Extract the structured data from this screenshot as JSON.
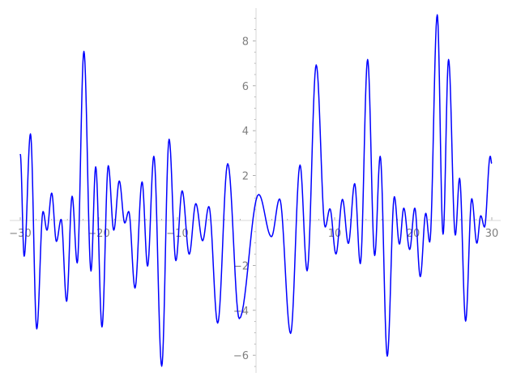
{
  "chart_data": {
    "type": "line",
    "title": "",
    "xlabel": "",
    "ylabel": "",
    "xlim": [
      -30,
      30
    ],
    "ylim": [
      -6.7,
      9.4
    ],
    "grid": false,
    "axes_through_origin": true,
    "line_color": "#0000ff",
    "axis_color": "#e6e6e6",
    "tick_label_color": "#7f7f7f",
    "x_ticks": [
      -30,
      -20,
      -10,
      10,
      20,
      30
    ],
    "x_tick_labels": [
      "−30",
      "−20",
      "−10",
      "10",
      "20",
      "30"
    ],
    "x_minor_step": 2,
    "y_ticks": [
      -6,
      -4,
      -2,
      2,
      4,
      6,
      8
    ],
    "y_tick_labels": [
      "−6",
      "−4",
      "−2",
      "2",
      "4",
      "6",
      "8"
    ],
    "y_minor_step": 0.5,
    "series": [
      {
        "points": [
          [
            -30.0,
            2.96
          ],
          [
            -29.5,
            -1.59
          ],
          [
            -28.7,
            3.86
          ],
          [
            -27.9,
            -4.83
          ],
          [
            -27.1,
            0.4
          ],
          [
            -26.6,
            -0.43
          ],
          [
            -26.0,
            1.22
          ],
          [
            -25.4,
            -0.93
          ],
          [
            -24.8,
            0.05
          ],
          [
            -24.1,
            -3.6
          ],
          [
            -23.4,
            1.08
          ],
          [
            -22.75,
            -1.89
          ],
          [
            -21.9,
            7.53
          ],
          [
            -21.0,
            -2.25
          ],
          [
            -20.4,
            2.39
          ],
          [
            -19.6,
            -4.74
          ],
          [
            -18.8,
            2.44
          ],
          [
            -18.1,
            -0.43
          ],
          [
            -17.4,
            1.76
          ],
          [
            -16.7,
            -0.11
          ],
          [
            -16.2,
            0.4
          ],
          [
            -15.4,
            -3.01
          ],
          [
            -14.5,
            1.72
          ],
          [
            -13.8,
            -2.03
          ],
          [
            -13.0,
            2.86
          ],
          [
            -12.0,
            -6.49
          ],
          [
            -11.06,
            3.62
          ],
          [
            -10.2,
            -1.79
          ],
          [
            -9.4,
            1.32
          ],
          [
            -8.5,
            -1.5
          ],
          [
            -7.66,
            0.75
          ],
          [
            -6.8,
            -0.9
          ],
          [
            -6.0,
            0.62
          ],
          [
            -4.88,
            -4.57
          ],
          [
            -3.6,
            2.53
          ],
          [
            -2.13,
            -4.37
          ],
          [
            0.34,
            1.16
          ],
          [
            1.96,
            -0.72
          ],
          [
            3.0,
            0.96
          ],
          [
            4.4,
            -5.03
          ],
          [
            5.6,
            2.47
          ],
          [
            6.5,
            -2.24
          ],
          [
            7.66,
            6.93
          ],
          [
            8.8,
            -0.29
          ],
          [
            9.4,
            0.52
          ],
          [
            10.17,
            -1.49
          ],
          [
            11.0,
            0.94
          ],
          [
            11.75,
            -1.02
          ],
          [
            12.55,
            1.64
          ],
          [
            13.27,
            -1.92
          ],
          [
            14.2,
            7.17
          ],
          [
            15.1,
            -1.56
          ],
          [
            15.8,
            2.86
          ],
          [
            16.7,
            -6.04
          ],
          [
            17.6,
            1.06
          ],
          [
            18.25,
            -1.05
          ],
          [
            18.8,
            0.55
          ],
          [
            19.55,
            -1.29
          ],
          [
            20.2,
            0.55
          ],
          [
            20.9,
            -2.5
          ],
          [
            21.6,
            0.32
          ],
          [
            22.1,
            -0.96
          ],
          [
            23.06,
            9.16
          ],
          [
            23.8,
            -0.61
          ],
          [
            24.5,
            7.17
          ],
          [
            25.36,
            -0.65
          ],
          [
            25.9,
            1.88
          ],
          [
            26.67,
            -4.48
          ],
          [
            27.45,
            0.97
          ],
          [
            28.1,
            -1.01
          ],
          [
            28.6,
            0.21
          ],
          [
            29.07,
            -0.29
          ],
          [
            29.8,
            2.86
          ],
          [
            30.0,
            2.54
          ]
        ]
      }
    ]
  }
}
